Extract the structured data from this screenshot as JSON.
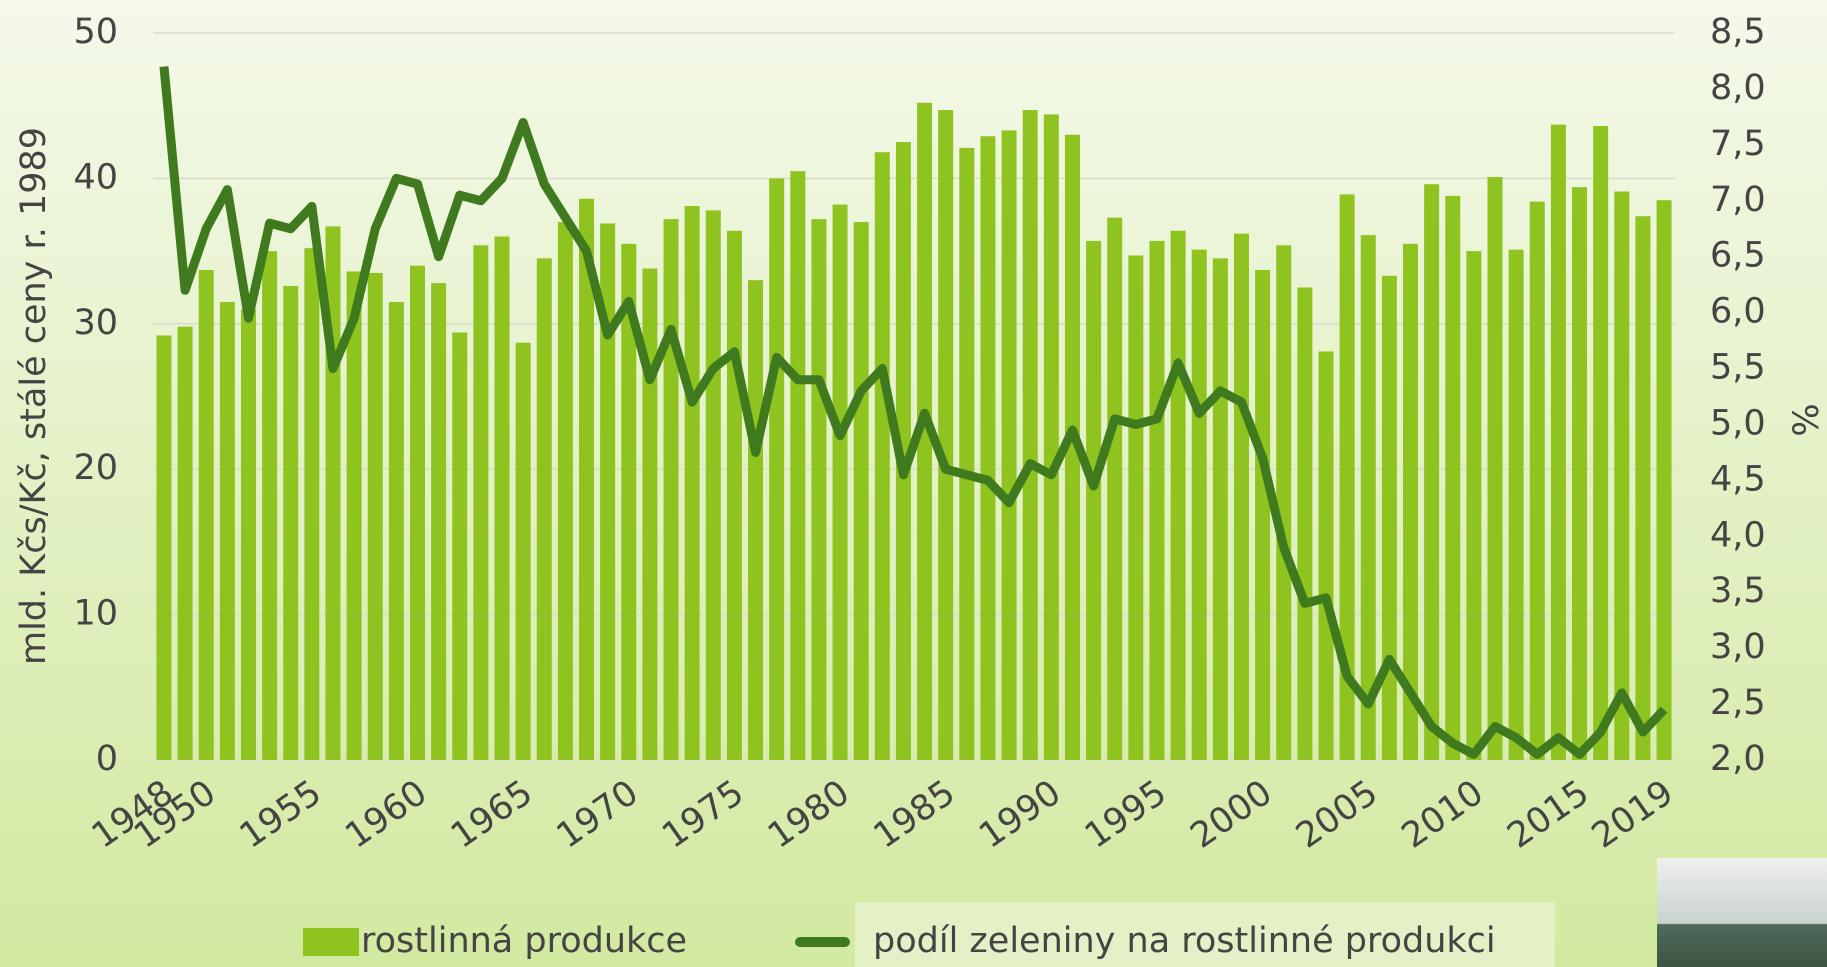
{
  "chart_data": {
    "type": "bar+line",
    "categories": [
      "1948",
      null,
      "1950",
      null,
      null,
      null,
      null,
      "1955",
      null,
      null,
      null,
      null,
      "1960",
      null,
      null,
      null,
      null,
      "1965",
      null,
      null,
      null,
      null,
      "1970",
      null,
      null,
      null,
      null,
      "1975",
      null,
      null,
      null,
      null,
      "1980",
      null,
      null,
      null,
      null,
      "1985",
      null,
      null,
      null,
      null,
      "1990",
      null,
      null,
      null,
      null,
      "1995",
      null,
      null,
      null,
      null,
      "2000",
      null,
      null,
      null,
      null,
      "2005",
      null,
      null,
      null,
      null,
      "2010",
      null,
      null,
      null,
      null,
      "2015",
      null,
      null,
      null,
      "2019"
    ],
    "series": [
      {
        "name": "rostlinná produkce",
        "type": "bar",
        "color": "#8fc31f",
        "values": [
          29.2,
          29.8,
          33.7,
          31.5,
          31.0,
          35.0,
          32.6,
          35.2,
          36.7,
          33.6,
          33.5,
          31.5,
          34.0,
          32.8,
          29.4,
          35.4,
          36.0,
          28.7,
          34.5,
          37.0,
          38.6,
          36.9,
          35.5,
          33.8,
          37.2,
          38.1,
          37.8,
          36.4,
          33.0,
          40.0,
          40.5,
          37.2,
          38.2,
          37.0,
          41.8,
          42.5,
          45.2,
          44.7,
          42.1,
          42.9,
          43.3,
          44.7,
          44.4,
          43.0,
          35.7,
          37.3,
          34.7,
          35.7,
          36.4,
          35.1,
          34.5,
          36.2,
          33.7,
          35.4,
          32.5,
          28.1,
          38.9,
          36.1,
          33.3,
          35.5,
          39.6,
          38.8,
          35.0,
          40.1,
          35.1,
          38.4,
          43.7,
          39.4,
          43.6,
          39.1,
          37.4,
          38.5
        ]
      },
      {
        "name": "podíl zeleniny na rostlinné produkci",
        "type": "line",
        "axis": "y2",
        "color": "#3f7a1e",
        "values": [
          8.2,
          6.2,
          6.75,
          7.1,
          5.95,
          6.8,
          6.75,
          6.95,
          5.5,
          5.95,
          6.75,
          7.2,
          7.15,
          6.5,
          7.05,
          7.0,
          7.2,
          7.7,
          7.15,
          6.85,
          6.55,
          5.8,
          6.1,
          5.4,
          5.85,
          5.2,
          5.5,
          5.65,
          4.75,
          5.6,
          5.4,
          5.4,
          4.9,
          5.3,
          5.5,
          4.55,
          5.1,
          4.6,
          4.55,
          4.5,
          4.3,
          4.65,
          4.55,
          4.95,
          4.45,
          5.05,
          5.0,
          5.05,
          5.55,
          5.1,
          5.3,
          5.2,
          4.7,
          3.9,
          3.4,
          3.45,
          2.75,
          2.5,
          2.9,
          2.6,
          2.3,
          2.15,
          2.05,
          2.3,
          2.2,
          2.05,
          2.2,
          2.05,
          2.25,
          2.6,
          2.25,
          2.45
        ]
      }
    ],
    "ylabel": "mld. Kčs/Kč, stálé ceny r. 1989",
    "y2label": "%",
    "ylim": [
      0,
      50
    ],
    "yticks": [
      0,
      10,
      20,
      30,
      40,
      50
    ],
    "y2lim": [
      2,
      8.5
    ],
    "y2ticks": [
      {
        "value": 2,
        "label": "2,0"
      },
      {
        "value": 2.5,
        "label": "2,5"
      },
      {
        "value": 3,
        "label": "3,0"
      },
      {
        "value": 3.5,
        "label": "3,5"
      },
      {
        "value": 4,
        "label": "4,0"
      },
      {
        "value": 4.5,
        "label": "4,5"
      },
      {
        "value": 5,
        "label": "5,0"
      },
      {
        "value": 5.5,
        "label": "5,5"
      },
      {
        "value": 6,
        "label": "6,0"
      },
      {
        "value": 6.5,
        "label": "6,5"
      },
      {
        "value": 7,
        "label": "7,0"
      },
      {
        "value": 7.5,
        "label": "7,5"
      },
      {
        "value": 8,
        "label": "8,0"
      },
      {
        "value": 8.5,
        "label": "8,5"
      }
    ],
    "grid": true,
    "legend": "bottom"
  }
}
